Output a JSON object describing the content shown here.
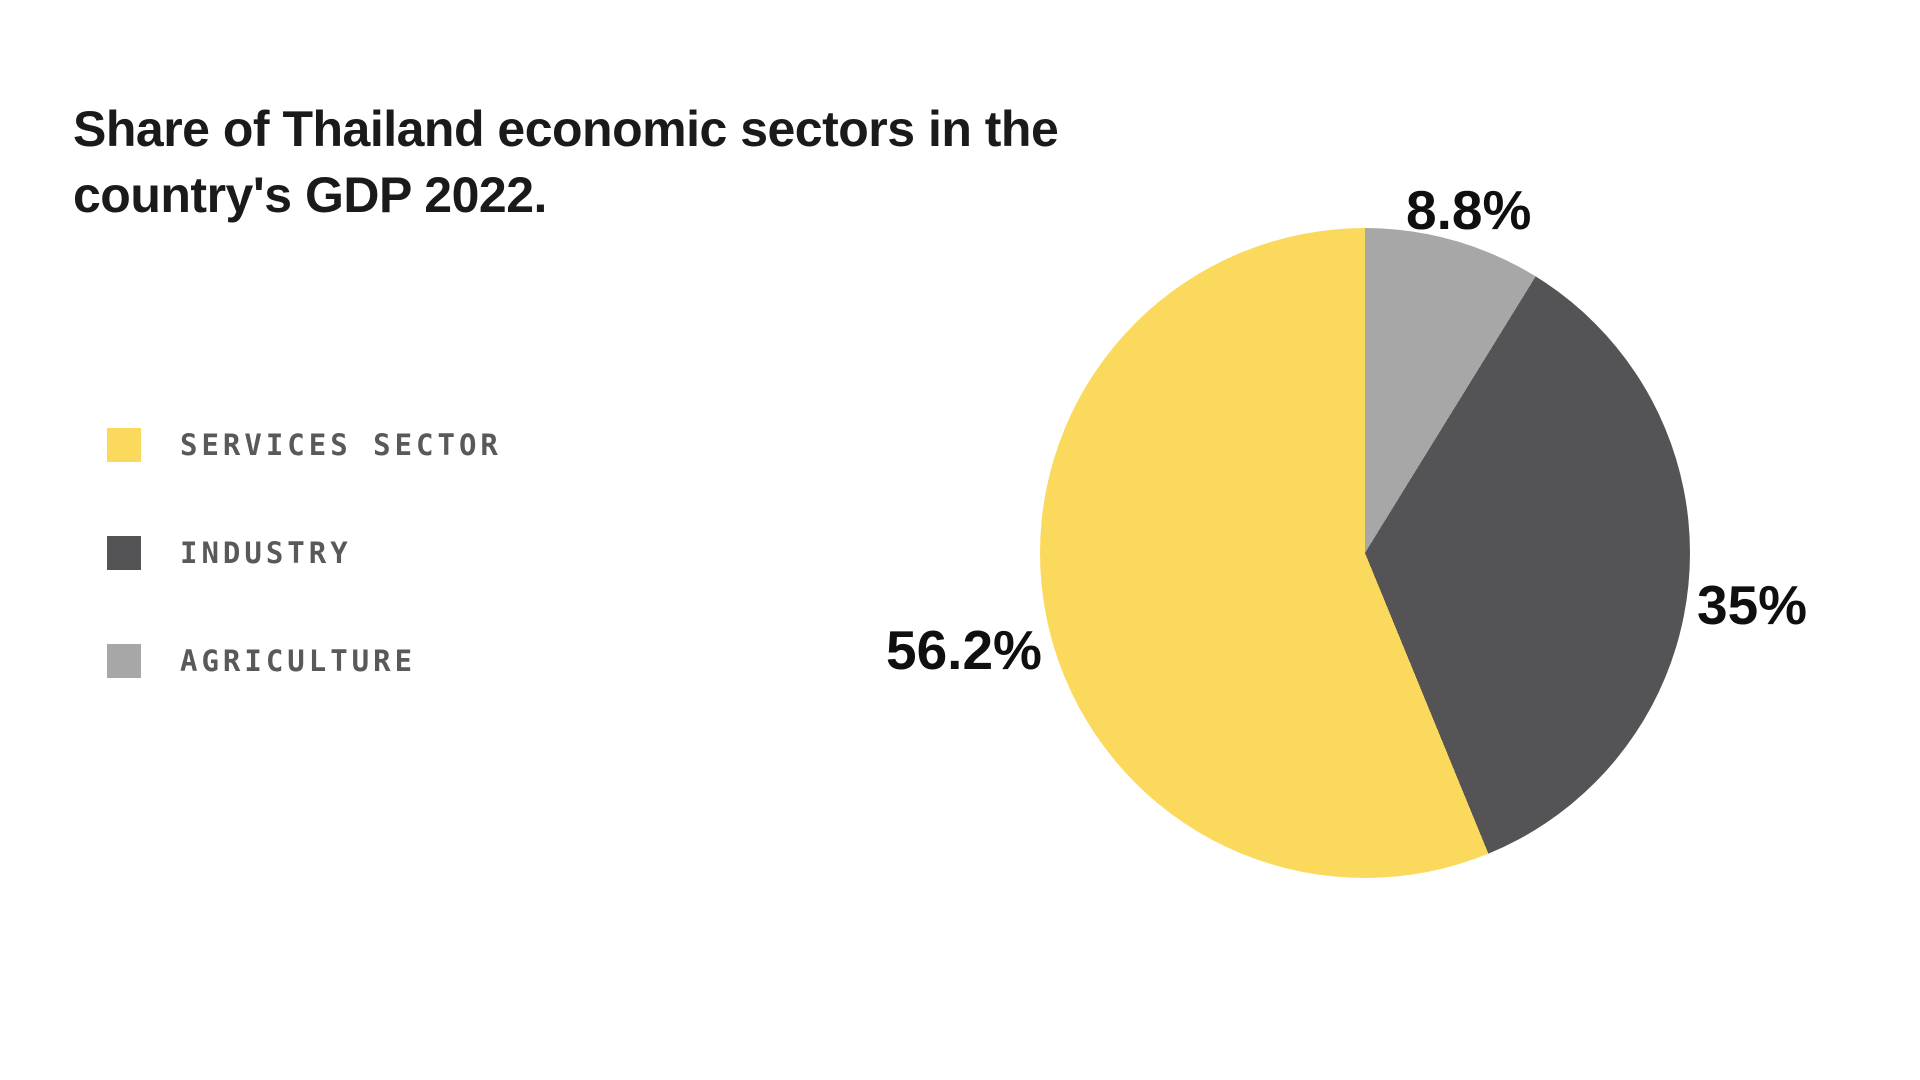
{
  "page": {
    "background": "#ffffff"
  },
  "title_lines": [
    "Share of Thailand economic sectors in the",
    "country's GDP 2022."
  ],
  "chart_data": {
    "type": "pie",
    "title": "Share of Thailand economic sectors in the country's GDP 2022.",
    "slices": [
      {
        "label": "SERVICES SECTOR",
        "value": 56.2,
        "display": "56.2%",
        "color": "#FBD95C"
      },
      {
        "label": "INDUSTRY",
        "value": 35,
        "display": "35%",
        "color": "#545456"
      },
      {
        "label": "AGRICULTURE",
        "value": 8.8,
        "display": "8.8%",
        "color": "#A7A7A7"
      }
    ],
    "draw_from_top_clockwise": [
      2,
      1,
      0
    ],
    "start_angle_deg": 0,
    "direction": "clockwise",
    "legend_position": "left",
    "grid": "off",
    "text_colors": {
      "title": "#1a1a1a",
      "legend": "#58595b",
      "labels": "#0f0f0f"
    }
  }
}
